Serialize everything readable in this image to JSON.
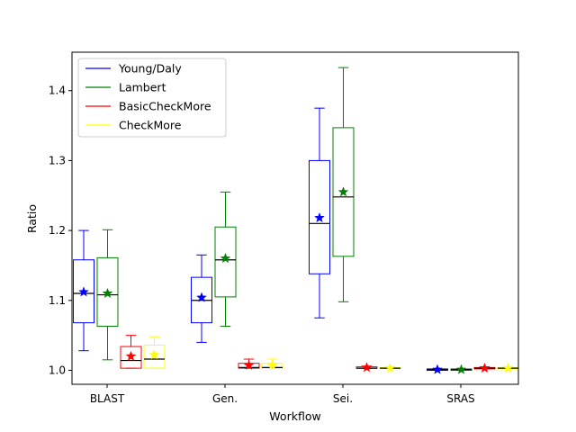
{
  "chart_data": {
    "type": "boxplot",
    "xlabel": "Workflow",
    "ylabel": "Ratio",
    "ylim": [
      0.98,
      1.455
    ],
    "yticks": [
      "1.0",
      "1.1",
      "1.2",
      "1.3",
      "1.4"
    ],
    "categories": [
      "BLAST",
      "Gen.",
      "Sei.",
      "SRAS"
    ],
    "legend_position": "top-left",
    "grid": false,
    "mean_marker": "star",
    "median_color": "#000000",
    "series": [
      {
        "name": "Young/Daly",
        "color": "#0000ff",
        "boxes": [
          {
            "category": "BLAST",
            "whisker_low": 1.028,
            "q1": 1.068,
            "median": 1.11,
            "q3": 1.158,
            "whisker_high": 1.2,
            "mean": 1.112
          },
          {
            "category": "Gen.",
            "whisker_low": 1.04,
            "q1": 1.068,
            "median": 1.1,
            "q3": 1.133,
            "whisker_high": 1.165,
            "mean": 1.104
          },
          {
            "category": "Sei.",
            "whisker_low": 1.075,
            "q1": 1.138,
            "median": 1.21,
            "q3": 1.3,
            "whisker_high": 1.375,
            "mean": 1.218
          },
          {
            "category": "SRAS",
            "whisker_low": 1.0,
            "q1": 1.0,
            "median": 1.001,
            "q3": 1.002,
            "whisker_high": 1.002,
            "mean": 1.001
          }
        ]
      },
      {
        "name": "Lambert",
        "color": "#008000",
        "boxes": [
          {
            "category": "BLAST",
            "whisker_low": 1.015,
            "q1": 1.063,
            "median": 1.108,
            "q3": 1.161,
            "whisker_high": 1.201,
            "mean": 1.11
          },
          {
            "category": "Gen.",
            "whisker_low": 1.063,
            "q1": 1.105,
            "median": 1.158,
            "q3": 1.205,
            "whisker_high": 1.255,
            "mean": 1.16
          },
          {
            "category": "Sei.",
            "whisker_low": 1.098,
            "q1": 1.163,
            "median": 1.248,
            "q3": 1.347,
            "whisker_high": 1.433,
            "mean": 1.255
          },
          {
            "category": "SRAS",
            "whisker_low": 1.0,
            "q1": 1.0,
            "median": 1.001,
            "q3": 1.002,
            "whisker_high": 1.002,
            "mean": 1.001
          }
        ]
      },
      {
        "name": "BasicCheckMore",
        "color": "#ff0000",
        "boxes": [
          {
            "category": "BLAST",
            "whisker_low": 1.003,
            "q1": 1.003,
            "median": 1.014,
            "q3": 1.034,
            "whisker_high": 1.05,
            "mean": 1.02
          },
          {
            "category": "Gen.",
            "whisker_low": 1.003,
            "q1": 1.003,
            "median": 1.004,
            "q3": 1.01,
            "whisker_high": 1.016,
            "mean": 1.007
          },
          {
            "category": "Sei.",
            "whisker_low": 1.003,
            "q1": 1.003,
            "median": 1.003,
            "q3": 1.005,
            "whisker_high": 1.006,
            "mean": 1.004
          },
          {
            "category": "SRAS",
            "whisker_low": 1.002,
            "q1": 1.002,
            "median": 1.003,
            "q3": 1.004,
            "whisker_high": 1.005,
            "mean": 1.003
          }
        ]
      },
      {
        "name": "CheckMore",
        "color": "#ffff00",
        "boxes": [
          {
            "category": "BLAST",
            "whisker_low": 1.003,
            "q1": 1.003,
            "median": 1.016,
            "q3": 1.036,
            "whisker_high": 1.048,
            "mean": 1.022
          },
          {
            "category": "Gen.",
            "whisker_low": 1.003,
            "q1": 1.003,
            "median": 1.004,
            "q3": 1.01,
            "whisker_high": 1.016,
            "mean": 1.007
          },
          {
            "category": "Sei.",
            "whisker_low": 1.003,
            "q1": 1.003,
            "median": 1.003,
            "q3": 1.004,
            "whisker_high": 1.005,
            "mean": 1.003
          },
          {
            "category": "SRAS",
            "whisker_low": 1.002,
            "q1": 1.002,
            "median": 1.003,
            "q3": 1.004,
            "whisker_high": 1.005,
            "mean": 1.003
          }
        ]
      }
    ]
  }
}
